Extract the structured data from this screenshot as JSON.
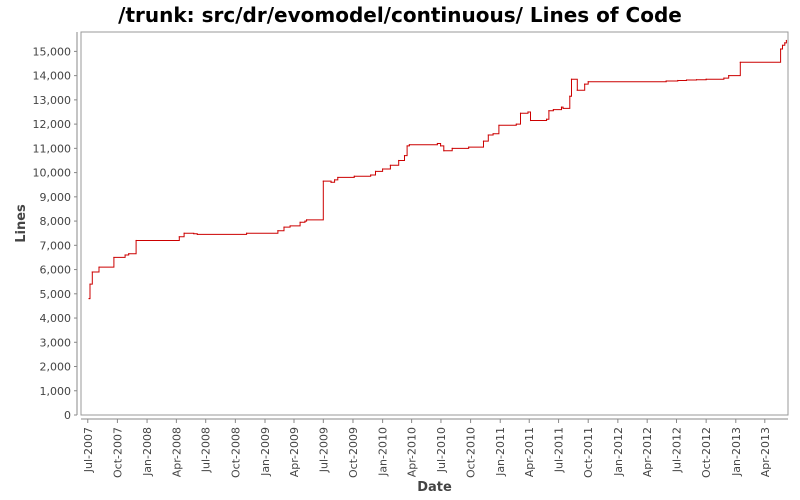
{
  "chart_data": {
    "type": "line",
    "title": "/trunk: src/dr/evomodel/continuous/ Lines of Code",
    "xlabel": "Date",
    "ylabel": "Lines",
    "step": true,
    "grid": false,
    "line_color": "#cc0000",
    "ylim": [
      0,
      15800
    ],
    "xlim": [
      "2007-06-10",
      "2013-06-12"
    ],
    "y_ticks": [
      0,
      1000,
      2000,
      3000,
      4000,
      5000,
      6000,
      7000,
      8000,
      9000,
      10000,
      11000,
      12000,
      13000,
      14000,
      15000
    ],
    "y_tick_labels": [
      "0",
      "1,000",
      "2,000",
      "3,000",
      "4,000",
      "5,000",
      "6,000",
      "7,000",
      "8,000",
      "9,000",
      "10,000",
      "11,000",
      "12,000",
      "13,000",
      "14,000",
      "15,000"
    ],
    "x_ticks": [
      "2007-07-01",
      "2007-10-01",
      "2008-01-01",
      "2008-04-01",
      "2008-07-01",
      "2008-10-01",
      "2009-01-01",
      "2009-04-01",
      "2009-07-01",
      "2009-10-01",
      "2010-01-01",
      "2010-04-01",
      "2010-07-01",
      "2010-10-01",
      "2011-01-01",
      "2011-04-01",
      "2011-07-01",
      "2011-10-01",
      "2012-01-01",
      "2012-04-01",
      "2012-07-01",
      "2012-10-01",
      "2013-01-01",
      "2013-04-01"
    ],
    "x_tick_labels": [
      "Jul-2007",
      "Oct-2007",
      "Jan-2008",
      "Apr-2008",
      "Jul-2008",
      "Oct-2008",
      "Jan-2009",
      "Apr-2009",
      "Jul-2009",
      "Oct-2009",
      "Jan-2010",
      "Apr-2010",
      "Jul-2010",
      "Oct-2010",
      "Jan-2011",
      "Apr-2011",
      "Jul-2011",
      "Oct-2011",
      "Jan-2012",
      "Apr-2012",
      "Jul-2012",
      "Oct-2012",
      "Jan-2013",
      "Apr-2013"
    ],
    "x": [
      "2007-07-05",
      "2007-07-08",
      "2007-07-15",
      "2007-08-05",
      "2007-09-20",
      "2007-10-25",
      "2007-11-05",
      "2007-11-28",
      "2008-04-10",
      "2008-04-25",
      "2008-05-25",
      "2008-06-05",
      "2008-11-05",
      "2009-02-10",
      "2009-03-01",
      "2009-03-20",
      "2009-04-20",
      "2009-05-05",
      "2009-05-10",
      "2009-07-01",
      "2009-07-25",
      "2009-08-05",
      "2009-08-15",
      "2009-10-05",
      "2009-11-25",
      "2009-12-10",
      "2010-01-01",
      "2010-01-25",
      "2010-02-20",
      "2010-03-10",
      "2010-03-18",
      "2010-03-25",
      "2010-06-20",
      "2010-06-30",
      "2010-07-10",
      "2010-08-05",
      "2010-09-25",
      "2010-11-10",
      "2010-11-25",
      "2010-12-10",
      "2010-12-28",
      "2011-02-20",
      "2011-03-05",
      "2011-03-28",
      "2011-04-05",
      "2011-05-25",
      "2011-06-01",
      "2011-06-15",
      "2011-07-10",
      "2011-07-15",
      "2011-08-05",
      "2011-08-10",
      "2011-08-28",
      "2011-09-20",
      "2011-10-01",
      "2012-05-30",
      "2012-07-05",
      "2012-08-01",
      "2012-09-01",
      "2012-10-01",
      "2012-11-25",
      "2012-12-10",
      "2013-01-15",
      "2013-05-20",
      "2013-05-26",
      "2013-06-02",
      "2013-06-07"
    ],
    "y": [
      4800,
      5400,
      5900,
      6100,
      6500,
      6600,
      6650,
      7200,
      7350,
      7500,
      7480,
      7450,
      7500,
      7600,
      7750,
      7800,
      7950,
      8000,
      8050,
      9650,
      9600,
      9700,
      9800,
      9850,
      9900,
      10050,
      10150,
      10300,
      10500,
      10700,
      11100,
      11150,
      11200,
      11100,
      10900,
      11000,
      11050,
      11300,
      11550,
      11600,
      11950,
      12000,
      12450,
      12500,
      12150,
      12200,
      12550,
      12600,
      12700,
      12650,
      13150,
      13850,
      13400,
      13650,
      13750,
      13780,
      13800,
      13820,
      13830,
      13850,
      13900,
      14000,
      14550,
      15100,
      15250,
      15350,
      15450
    ]
  }
}
